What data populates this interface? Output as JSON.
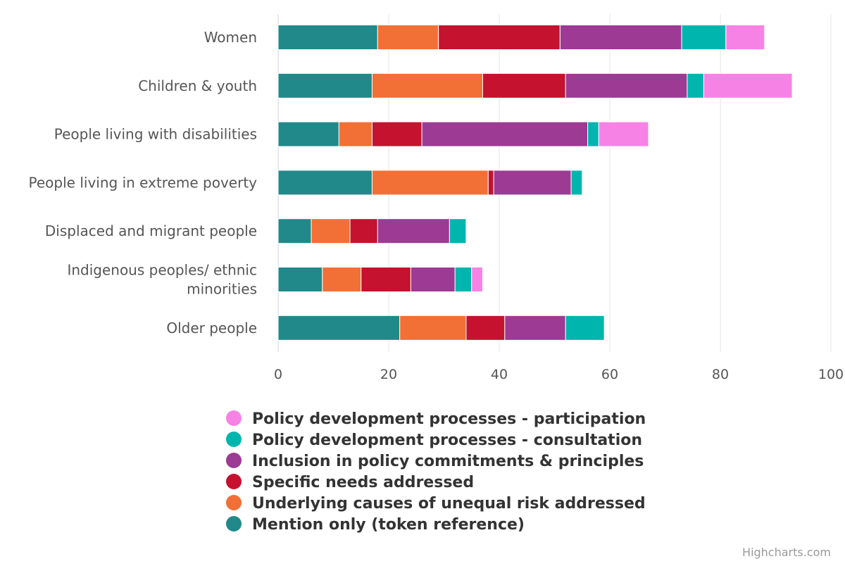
{
  "chart_data": {
    "type": "bar",
    "orientation": "horizontal",
    "stacked": true,
    "categories": [
      "Women",
      "Children & youth",
      "People living with disabilities",
      "People living in extreme poverty",
      "Displaced and migrant people",
      "Indigenous peoples/ ethnic minorities",
      "Older people"
    ],
    "series": [
      {
        "name": "Mention only (token reference)",
        "color": "#21898a",
        "values": [
          18,
          17,
          11,
          17,
          6,
          8,
          22
        ]
      },
      {
        "name": "Underlying causes of unequal risk addressed",
        "color": "#f26f35",
        "values": [
          11,
          20,
          6,
          21,
          7,
          7,
          12
        ]
      },
      {
        "name": "Specific needs addressed",
        "color": "#c4122f",
        "values": [
          22,
          15,
          9,
          1,
          5,
          9,
          7
        ]
      },
      {
        "name": "Inclusion in policy commitments & principles",
        "color": "#9c3a94",
        "values": [
          22,
          22,
          30,
          14,
          13,
          8,
          11
        ]
      },
      {
        "name": "Policy development processes - consultation",
        "color": "#00b5ad",
        "values": [
          8,
          3,
          2,
          2,
          3,
          3,
          7
        ]
      },
      {
        "name": "Policy development processes - participation",
        "color": "#f782e6",
        "values": [
          7,
          16,
          9,
          0,
          0,
          2,
          0
        ]
      }
    ],
    "legend_order": [
      5,
      4,
      3,
      2,
      1,
      0
    ],
    "xlim": [
      0,
      100
    ],
    "x_ticks": [
      0,
      20,
      40,
      60,
      80,
      100
    ],
    "grid": true,
    "legend_position": "bottom",
    "title": "",
    "xlabel": "",
    "ylabel": ""
  },
  "credits": "Highcharts.com"
}
